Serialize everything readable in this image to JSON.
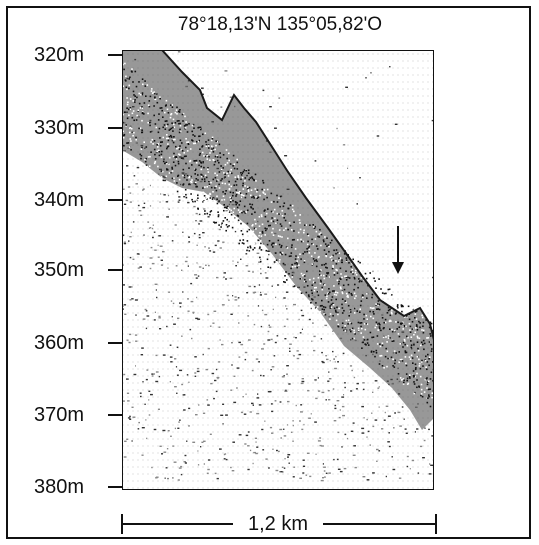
{
  "title": "78°18,13'N 135°05,82'O",
  "depth_axis": {
    "ticks": [
      "320m",
      "330m",
      "340m",
      "350m",
      "360m",
      "370m",
      "380m"
    ],
    "range_m": [
      320,
      380
    ]
  },
  "scale_bar": {
    "label": "1,2 km"
  },
  "colors": {
    "ink": "#111111",
    "background": "#ffffff",
    "echo_dark": "#2a2a2a",
    "echo_mid": "#777777"
  },
  "icons": {
    "marker": "down-arrow-icon"
  }
}
